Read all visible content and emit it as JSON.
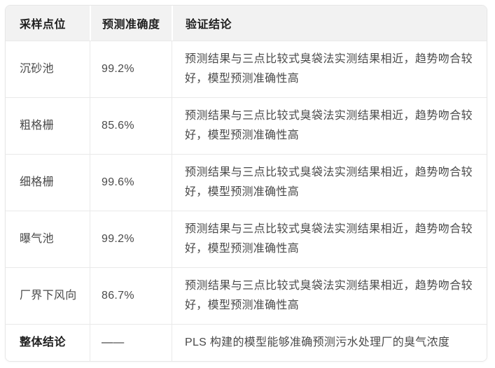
{
  "chart_data": {
    "type": "table",
    "columns": [
      "采样点位",
      "预测准确度",
      "验证结论"
    ],
    "rows": [
      [
        "沉砂池",
        "99.2%",
        "预测结果与三点比较式臭袋法实测结果相近，趋势吻合较好，模型预测准确性高"
      ],
      [
        "粗格栅",
        "85.6%",
        "预测结果与三点比较式臭袋法实测结果相近，趋势吻合较好，模型预测准确性高"
      ],
      [
        "细格栅",
        "99.6%",
        "预测结果与三点比较式臭袋法实测结果相近，趋势吻合较好，模型预测准确性高"
      ],
      [
        "曝气池",
        "99.2%",
        "预测结果与三点比较式臭袋法实测结果相近，趋势吻合较好，模型预测准确性高"
      ],
      [
        "厂界下风向",
        "86.7%",
        "预测结果与三点比较式臭袋法实测结果相近，趋势吻合较好，模型预测准确性高"
      ],
      [
        "整体结论",
        "——",
        "PLS 构建的模型能够准确预测污水处理厂的臭气浓度"
      ]
    ]
  },
  "colors": {
    "header_bg": "#f2f2f2",
    "border": "#e9e9e9",
    "header_text": "#1f1f1f",
    "body_text": "#4a4a4a",
    "page_bg": "#ffffff"
  }
}
